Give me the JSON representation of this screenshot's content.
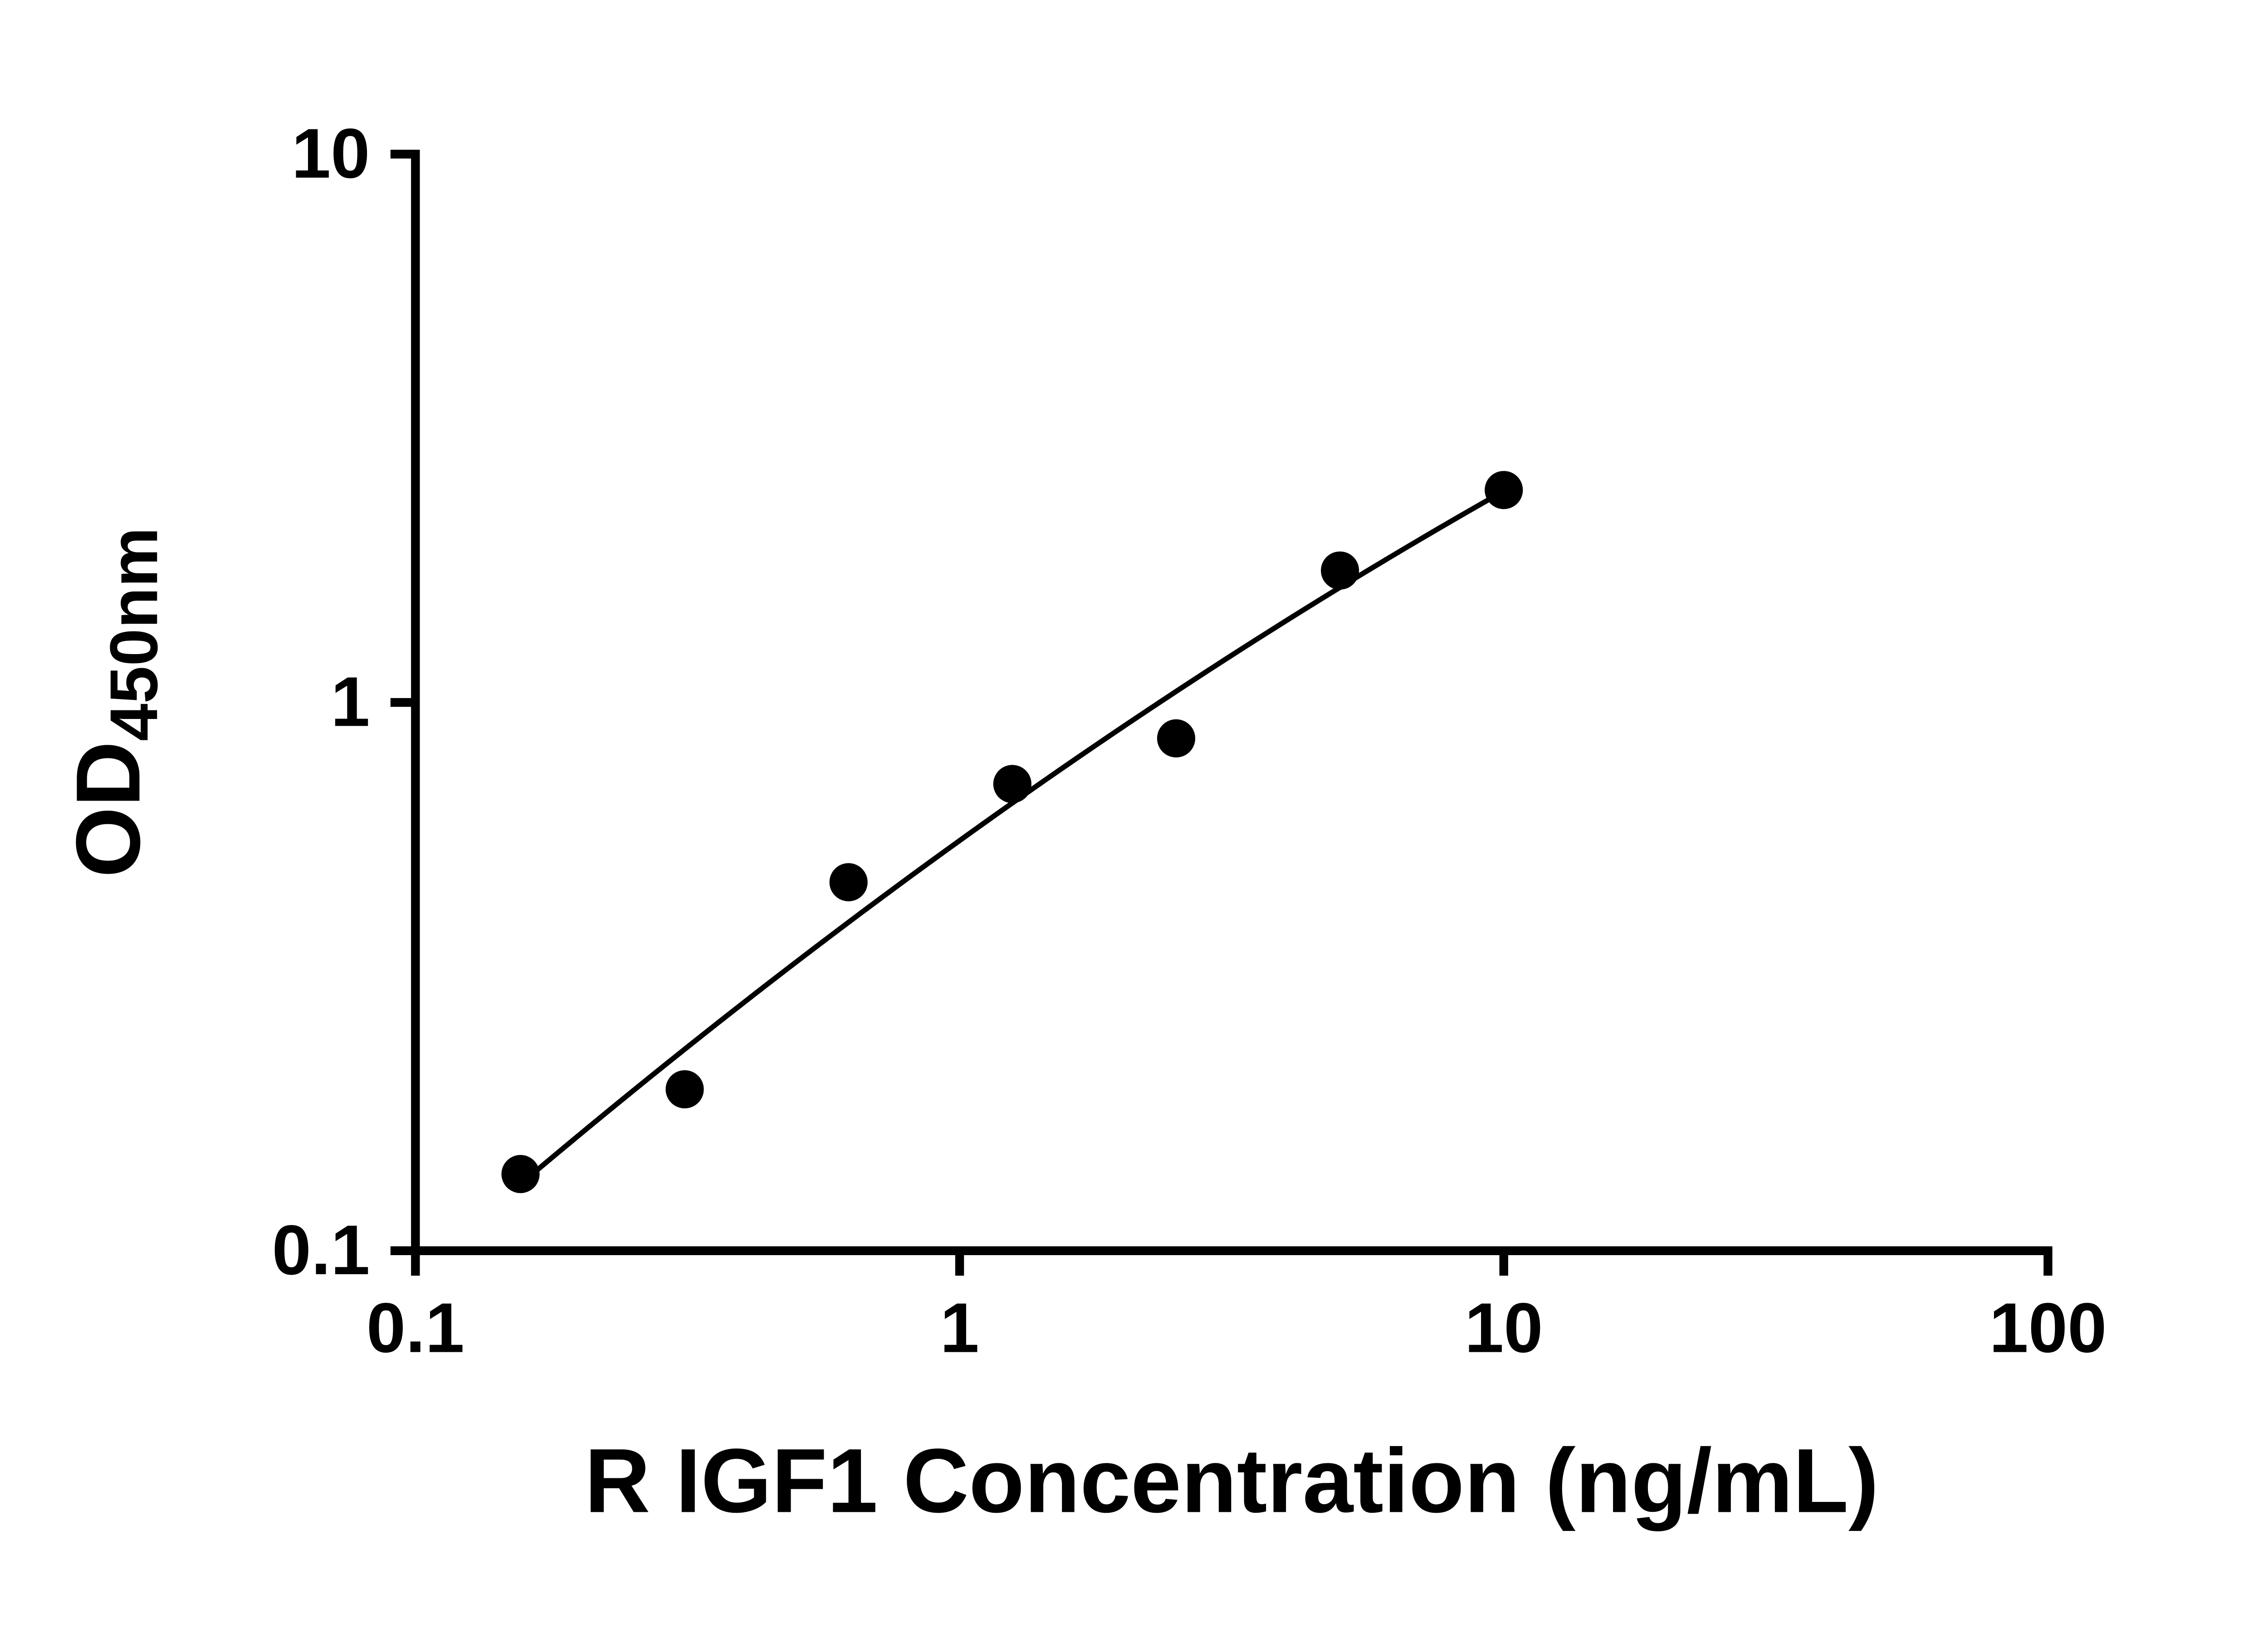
{
  "chart_data": {
    "type": "scatter",
    "title": "",
    "xlabel": "R IGF1 Concentration (ng/mL)",
    "ylabel_main": "OD",
    "ylabel_sub": "450nm",
    "x_scale": "log10",
    "y_scale": "log10",
    "xlim": [
      0.1,
      100
    ],
    "ylim": [
      0.1,
      10
    ],
    "x_ticks": [
      0.1,
      1,
      10,
      100
    ],
    "x_tick_labels": [
      "0.1",
      "1",
      "10",
      "100"
    ],
    "y_ticks": [
      0.1,
      1,
      10
    ],
    "y_tick_labels": [
      "0.1",
      "1",
      "10"
    ],
    "grid": false,
    "legend": "none",
    "series": [
      {
        "marker": "circle",
        "line": "smooth-fit-curve",
        "color": "#000000",
        "points": [
          {
            "x": 0.156,
            "y": 0.138
          },
          {
            "x": 0.3125,
            "y": 0.197
          },
          {
            "x": 0.625,
            "y": 0.47
          },
          {
            "x": 1.25,
            "y": 0.71
          },
          {
            "x": 2.5,
            "y": 0.86
          },
          {
            "x": 5,
            "y": 1.74
          },
          {
            "x": 10,
            "y": 2.44
          }
        ]
      }
    ],
    "colors": {
      "axis": "#000000",
      "marker": "#000000",
      "line": "#000000",
      "background": "#ffffff"
    }
  }
}
